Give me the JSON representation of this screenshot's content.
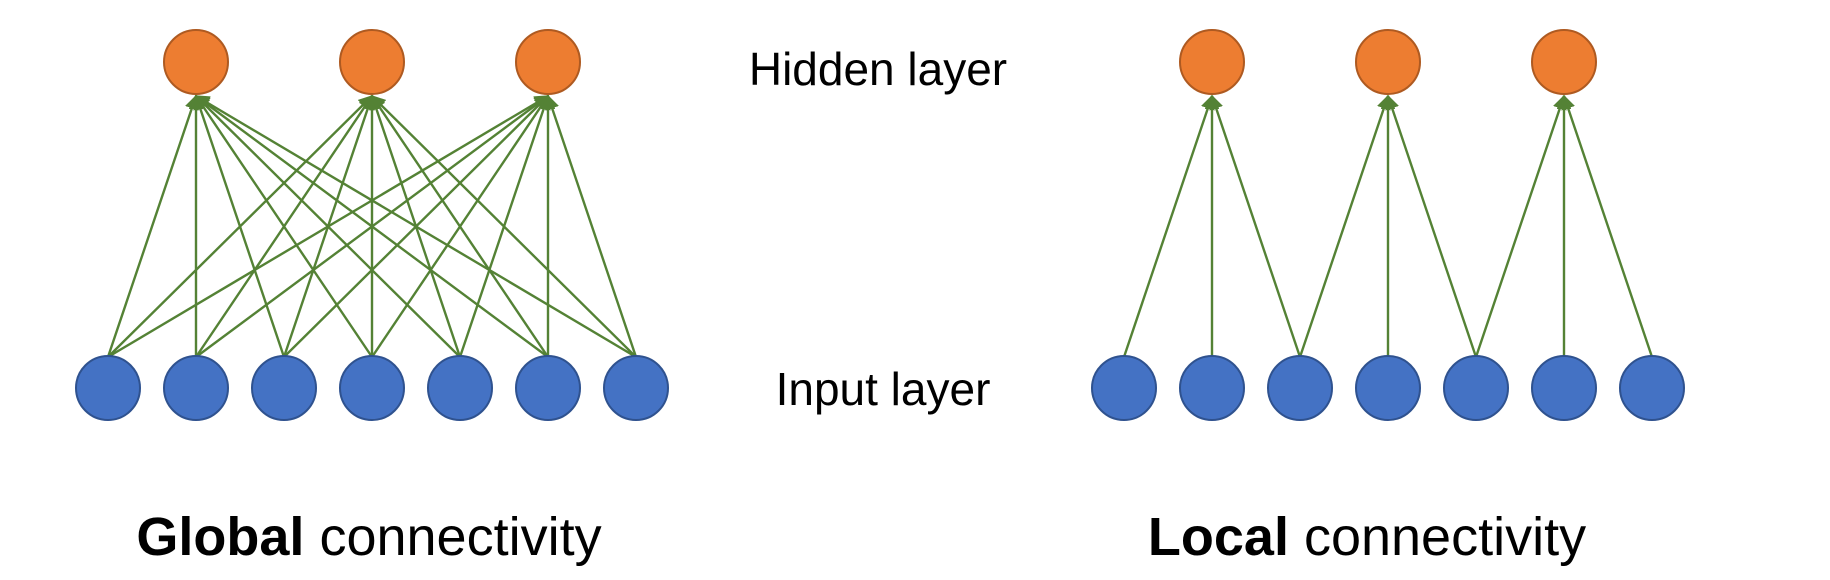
{
  "labels": {
    "hidden_layer": "Hidden layer",
    "input_layer": "Input layer"
  },
  "panels": [
    {
      "id": "global",
      "caption_bold": "Global",
      "caption_rest": " connectivity",
      "connectivity": "global",
      "hidden_count": 3,
      "input_count": 7
    },
    {
      "id": "local",
      "caption_bold": "Local",
      "caption_rest": " connectivity",
      "connectivity": "local",
      "hidden_count": 3,
      "input_count": 7
    }
  ],
  "colors": {
    "hidden_fill": "#ED7D31",
    "hidden_stroke": "#AE5A21",
    "input_fill": "#4472C4",
    "input_stroke": "#2F528F",
    "edge": "#548235"
  }
}
